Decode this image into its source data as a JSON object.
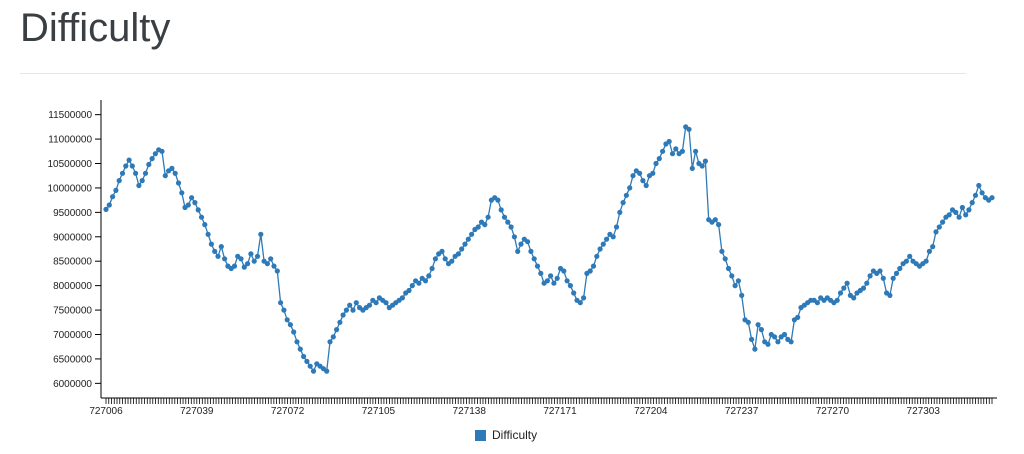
{
  "page": {
    "title": "Difficulty"
  },
  "chart_data": {
    "type": "line",
    "title": "",
    "xlabel": "",
    "ylabel": "",
    "x_start": 727006,
    "x_tick_labels": [
      "727006",
      "727039",
      "727072",
      "727105",
      "727138",
      "727171",
      "727204",
      "727237",
      "727270",
      "727303"
    ],
    "y_tick_labels": [
      "6000000",
      "6500000",
      "7000000",
      "7500000",
      "8000000",
      "8500000",
      "9000000",
      "9500000",
      "10000000",
      "10500000",
      "11000000",
      "11500000"
    ],
    "ylim": [
      5700000,
      11800000
    ],
    "xlim": [
      727006,
      727328
    ],
    "grid": false,
    "legend_position": "bottom",
    "series": [
      {
        "name": "Difficulty",
        "color": "#2e7ab8",
        "values": [
          9560000,
          9650000,
          9820000,
          9950000,
          10150000,
          10300000,
          10450000,
          10570000,
          10450000,
          10300000,
          10050000,
          10150000,
          10300000,
          10480000,
          10600000,
          10700000,
          10780000,
          10750000,
          10250000,
          10350000,
          10400000,
          10300000,
          10100000,
          9900000,
          9600000,
          9650000,
          9800000,
          9700000,
          9550000,
          9400000,
          9250000,
          9050000,
          8850000,
          8700000,
          8600000,
          8800000,
          8550000,
          8400000,
          8350000,
          8400000,
          8600000,
          8550000,
          8380000,
          8450000,
          8650000,
          8500000,
          8600000,
          9050000,
          8500000,
          8450000,
          8550000,
          8400000,
          8300000,
          7650000,
          7500000,
          7300000,
          7200000,
          7050000,
          6850000,
          6700000,
          6550000,
          6450000,
          6350000,
          6250000,
          6400000,
          6350000,
          6300000,
          6250000,
          6850000,
          6950000,
          7100000,
          7250000,
          7400000,
          7500000,
          7600000,
          7500000,
          7650000,
          7550000,
          7500000,
          7550000,
          7600000,
          7700000,
          7650000,
          7750000,
          7700000,
          7650000,
          7550000,
          7600000,
          7650000,
          7700000,
          7750000,
          7850000,
          7900000,
          8000000,
          8100000,
          8050000,
          8150000,
          8100000,
          8200000,
          8350000,
          8550000,
          8650000,
          8700000,
          8550000,
          8450000,
          8500000,
          8600000,
          8650000,
          8750000,
          8850000,
          8950000,
          9050000,
          9150000,
          9200000,
          9300000,
          9250000,
          9400000,
          9750000,
          9800000,
          9750000,
          9550000,
          9400000,
          9300000,
          9200000,
          9000000,
          8700000,
          8850000,
          8950000,
          8900000,
          8700000,
          8550000,
          8400000,
          8250000,
          8050000,
          8100000,
          8200000,
          8050000,
          8150000,
          8350000,
          8300000,
          8100000,
          8000000,
          7850000,
          7700000,
          7650000,
          7750000,
          8250000,
          8300000,
          8400000,
          8600000,
          8750000,
          8850000,
          8950000,
          9050000,
          9000000,
          9200000,
          9500000,
          9700000,
          9850000,
          10000000,
          10250000,
          10350000,
          10300000,
          10150000,
          10050000,
          10250000,
          10300000,
          10500000,
          10600000,
          10750000,
          10900000,
          10950000,
          10700000,
          10800000,
          10700000,
          10750000,
          11250000,
          11200000,
          10400000,
          10750000,
          10500000,
          10450000,
          10550000,
          9350000,
          9300000,
          9350000,
          9250000,
          8700000,
          8550000,
          8350000,
          8200000,
          8000000,
          8100000,
          7800000,
          7300000,
          7250000,
          6900000,
          6700000,
          7200000,
          7100000,
          6850000,
          6800000,
          7000000,
          6950000,
          6850000,
          6950000,
          7000000,
          6900000,
          6850000,
          7300000,
          7350000,
          7550000,
          7600000,
          7650000,
          7700000,
          7700000,
          7650000,
          7750000,
          7700000,
          7750000,
          7700000,
          7650000,
          7700000,
          7850000,
          7950000,
          8050000,
          7800000,
          7750000,
          7850000,
          7900000,
          7950000,
          8050000,
          8200000,
          8300000,
          8250000,
          8300000,
          8150000,
          7850000,
          7800000,
          8150000,
          8250000,
          8350000,
          8450000,
          8500000,
          8600000,
          8500000,
          8450000,
          8400000,
          8450000,
          8500000,
          8700000,
          8800000,
          9100000,
          9200000,
          9300000,
          9400000,
          9450000,
          9550000,
          9500000,
          9400000,
          9600000,
          9450000,
          9550000,
          9700000,
          9850000,
          10050000,
          9900000,
          9800000,
          9750000,
          9800000
        ]
      }
    ]
  }
}
